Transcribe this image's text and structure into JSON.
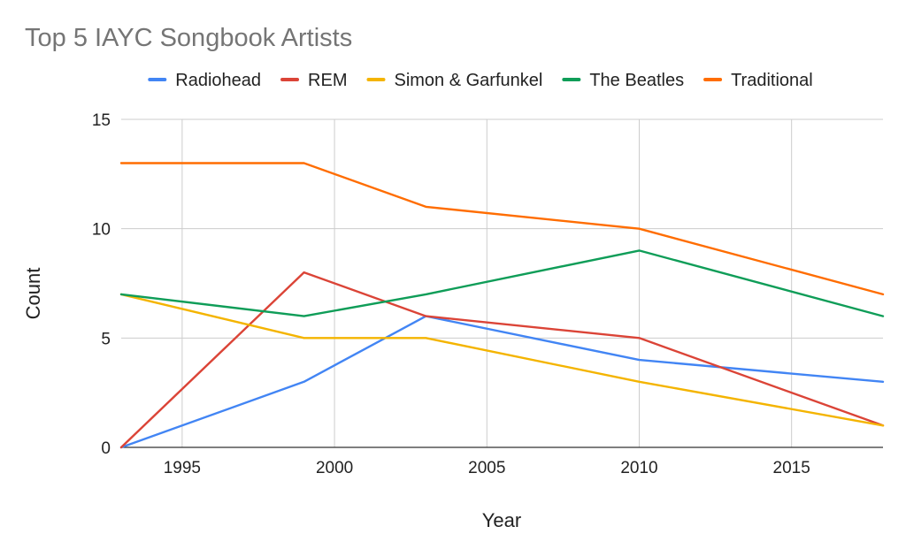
{
  "chart_data": {
    "type": "line",
    "title": "Top 5 IAYC Songbook Artists",
    "xlabel": "Year",
    "ylabel": "Count",
    "xlim": [
      1993,
      2018
    ],
    "ylim": [
      0,
      15
    ],
    "x_ticks": [
      1995,
      2000,
      2005,
      2010,
      2015
    ],
    "y_ticks": [
      0,
      5,
      10,
      15
    ],
    "grid": true,
    "legend_position": "top",
    "x": [
      1993,
      1999,
      2003,
      2010,
      2018
    ],
    "series": [
      {
        "name": "Radiohead",
        "color": "#4285F4",
        "values": [
          0,
          3,
          6,
          4,
          3
        ]
      },
      {
        "name": "REM",
        "color": "#DB4437",
        "values": [
          0,
          8,
          6,
          5,
          1
        ]
      },
      {
        "name": "Simon & Garfunkel",
        "color": "#F4B400",
        "values": [
          7,
          5,
          5,
          3,
          1
        ]
      },
      {
        "name": "The Beatles",
        "color": "#0F9D58",
        "values": [
          7,
          6,
          7,
          9,
          6
        ]
      },
      {
        "name": "Traditional",
        "color": "#FF6D01",
        "values": [
          13,
          13,
          11,
          10,
          7
        ]
      }
    ]
  }
}
